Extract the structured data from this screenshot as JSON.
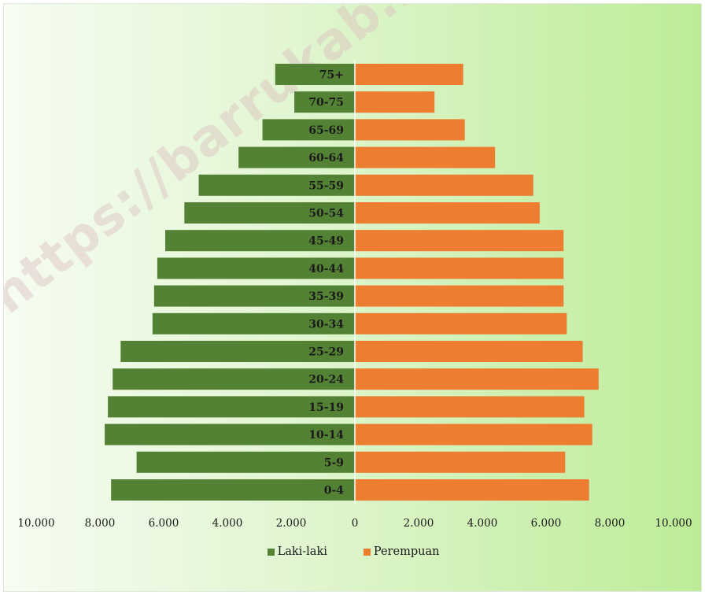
{
  "watermark": "https://barrukab.bps.go.id",
  "chart_data": {
    "type": "bar",
    "orientation": "horizontal",
    "chart_kind": "population-pyramid",
    "categories": [
      "0-4",
      "5-9",
      "10-14",
      "15-19",
      "20-24",
      "25-29",
      "30-34",
      "35-39",
      "40-44",
      "45-49",
      "50-54",
      "55-59",
      "60-64",
      "65-69",
      "70-75",
      "75+"
    ],
    "series": [
      {
        "name": "Laki-laki",
        "color": "#548235",
        "side": "left",
        "values": [
          7650,
          6850,
          7850,
          7750,
          7600,
          7350,
          6350,
          6300,
          6200,
          5950,
          5350,
          4900,
          3650,
          2900,
          1900,
          2500
        ]
      },
      {
        "name": "Perempuan",
        "color": "#ed7d31",
        "side": "right",
        "values": [
          7350,
          6600,
          7450,
          7200,
          7650,
          7150,
          6650,
          6550,
          6550,
          6550,
          5800,
          5600,
          4400,
          3450,
          2500,
          3400
        ]
      }
    ],
    "xticks": [
      "10.000",
      "8.000",
      "6.000",
      "4.000",
      "2.000",
      "0",
      "2.000",
      "4.000",
      "6.000",
      "8.000",
      "10.000"
    ],
    "xlim": [
      -10000,
      10000
    ],
    "legend_position": "bottom",
    "grid": false
  }
}
